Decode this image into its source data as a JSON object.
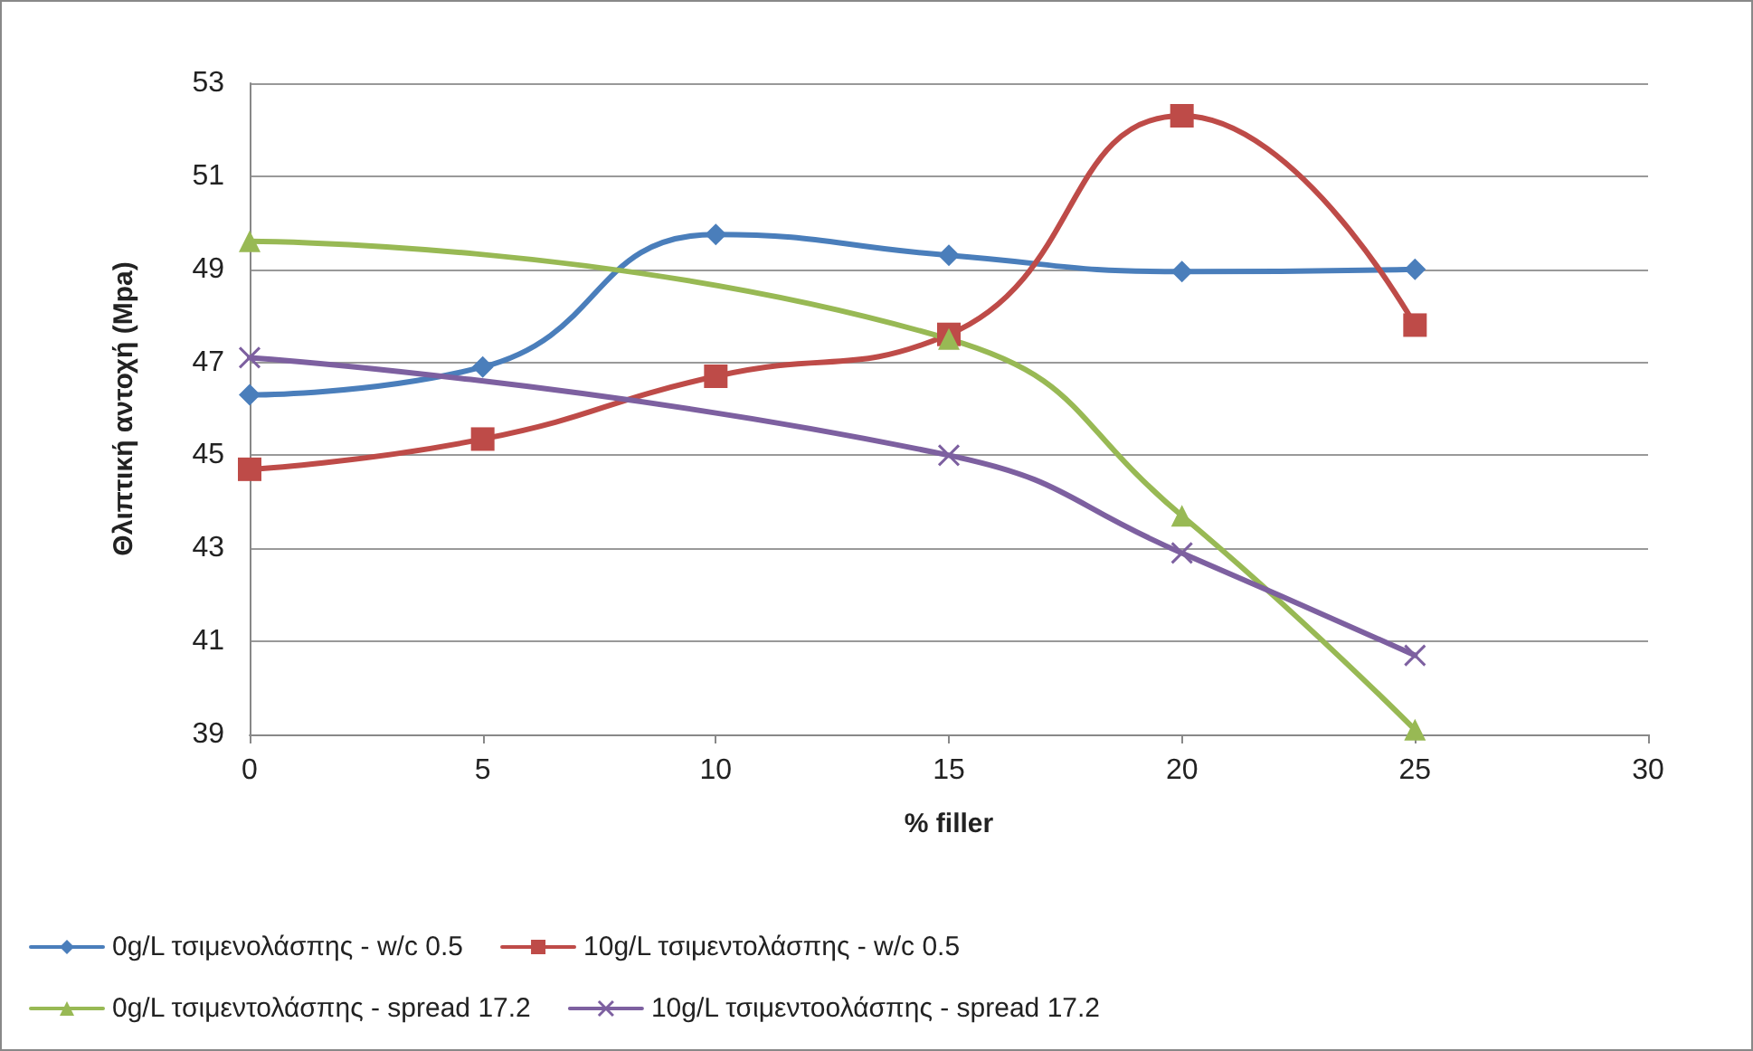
{
  "chart_data": {
    "type": "line",
    "xlabel": "% filler",
    "ylabel": "Θλιπτική αντοχή (Mpa)",
    "x": [
      0,
      5,
      10,
      15,
      20,
      25
    ],
    "series": [
      {
        "name": "0g/L τσιμενολάσπης - w/c 0.5",
        "color": "#4a7ebb",
        "marker": "diamond",
        "values": [
          46.3,
          46.9,
          49.75,
          49.3,
          48.95,
          49.0
        ]
      },
      {
        "name": "10g/L τσιμεντολάσπης - w/c 0.5",
        "color": "#be4b48",
        "marker": "square",
        "values": [
          44.7,
          45.35,
          46.7,
          47.6,
          52.3,
          47.8
        ]
      },
      {
        "name": "0g/L τσιμεντολάσπης - spread 17.2",
        "color": "#98b954",
        "marker": "triangle",
        "x": [
          0,
          15,
          20,
          25
        ],
        "values": [
          49.6,
          47.5,
          43.7,
          39.1
        ]
      },
      {
        "name": "10g/L τσιμεντοολάσπης - spread 17.2",
        "color": "#7d60a0",
        "marker": "cross",
        "x": [
          0,
          15,
          20,
          25
        ],
        "values": [
          47.1,
          45.0,
          42.9,
          40.7
        ]
      }
    ],
    "xlim": [
      0,
      30
    ],
    "xticks": [
      0,
      5,
      10,
      15,
      20,
      25,
      30
    ],
    "ylim": [
      39,
      53
    ],
    "yticks": [
      39,
      41,
      43,
      45,
      47,
      49,
      51,
      53
    ],
    "grid": "y",
    "legend": "bottom",
    "line_style": "solid"
  }
}
